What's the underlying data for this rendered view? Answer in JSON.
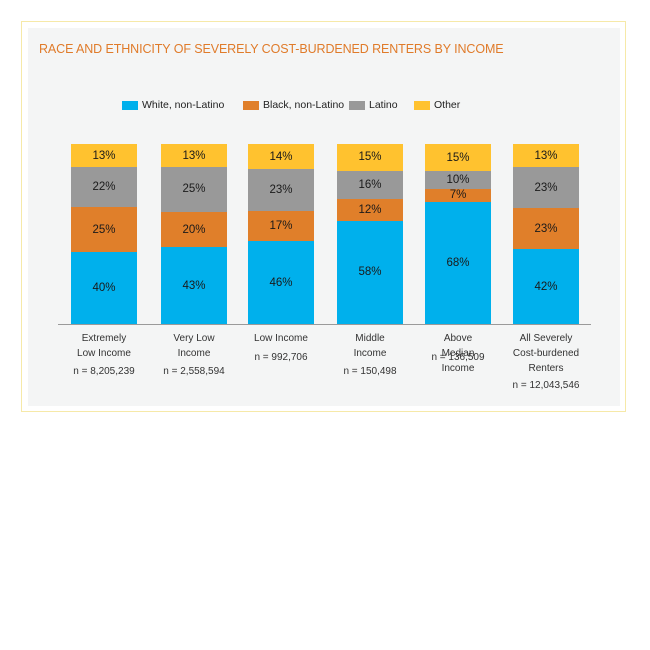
{
  "chart_data": {
    "type": "bar",
    "stacked": true,
    "title": "RACE AND ETHNICITY OF SEVERELY COST-BURDENED RENTERS BY INCOME",
    "xlabel": "",
    "ylabel": "",
    "ylim": [
      0,
      100
    ],
    "grid": false,
    "legend_position": "top",
    "categories": [
      "Extremely Low Income",
      "Very Low Income",
      "Low Income",
      "Middle Income",
      "Above Median Income",
      "All Severely Cost-burdened Renters"
    ],
    "category_lines": [
      [
        "Extremely",
        "Low Income"
      ],
      [
        "Very Low",
        "Income"
      ],
      [
        "Low Income"
      ],
      [
        "Middle",
        "Income"
      ],
      [
        "Above",
        "Median",
        "Income"
      ],
      [
        "All Severely",
        "Cost-burdened",
        "Renters"
      ]
    ],
    "n_labels": [
      "n = 8,205,239",
      "n = 2,558,594",
      "n = 992,706",
      "n = 150,498",
      "n = 136,509",
      "n = 12,043,546"
    ],
    "series": [
      {
        "name": "White, non-Latino",
        "color": "#00b0ec",
        "values": [
          40,
          43,
          46,
          58,
          68,
          42
        ]
      },
      {
        "name": "Black, non-Latino",
        "color": "#e07f2a",
        "values": [
          25,
          20,
          17,
          12,
          7,
          23
        ]
      },
      {
        "name": "Latino",
        "color": "#999999",
        "values": [
          22,
          25,
          23,
          16,
          10,
          23
        ]
      },
      {
        "name": "Other",
        "color": "#ffc22f",
        "values": [
          13,
          13,
          14,
          15,
          15,
          13
        ]
      }
    ],
    "value_suffix": "%"
  },
  "legend": {
    "items": [
      {
        "label": "White, non-Latino",
        "color": "#00b0ec"
      },
      {
        "label": "Black, non-Latino",
        "color": "#e07f2a"
      },
      {
        "label": "Latino",
        "color": "#999999"
      },
      {
        "label": "Other",
        "color": "#ffc22f"
      }
    ]
  },
  "colors": {
    "title": "#e07b2a",
    "panel_bg": "#f4f5f5",
    "frame_border": "#f6e9a8"
  }
}
